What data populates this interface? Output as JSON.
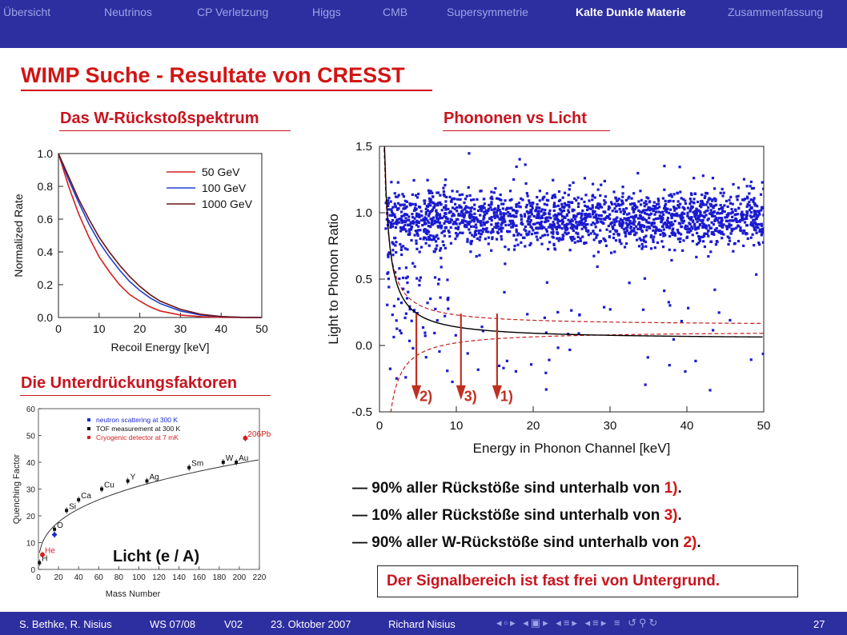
{
  "nav": {
    "items": [
      "Übersicht",
      "Neutrinos",
      "CP Verletzung",
      "Higgs",
      "CMB",
      "Supersymmetrie",
      "Kalte Dunkle Materie",
      "Zusammenfassung"
    ],
    "active_index": 6
  },
  "slide": {
    "title": "WIMP Suche - Resultate von CRESST",
    "sub_spectrum": "Das W-Rückstoßspektrum",
    "sub_scatter": "Phononen vs Licht",
    "sub_quench": "Die Unterdrückungsfaktoren",
    "bullets": [
      {
        "text": "— 90% aller Rückstöße sind unterhalb von ",
        "ref": "1)",
        "end": "."
      },
      {
        "text": "— 10% aller Rückstöße sind unterhalb von ",
        "ref": "3)",
        "end": "."
      },
      {
        "text": "— 90% aller W-Rückstöße sind unterhalb von ",
        "ref": "2)",
        "end": "."
      }
    ],
    "conclusion": "Der Signalbereich ist fast frei von Untergrund."
  },
  "chart_data": [
    {
      "type": "line",
      "xlabel": "Recoil Energy [keV]",
      "ylabel": "Normalized Rate",
      "xlim": [
        0,
        50
      ],
      "ylim": [
        0,
        1.0
      ],
      "xticks": [
        "0",
        "10",
        "20",
        "30",
        "40",
        "50"
      ],
      "yticks": [
        "0.0",
        "0.2",
        "0.4",
        "0.6",
        "0.8",
        "1.0"
      ],
      "legend_position": "top-right",
      "series": [
        {
          "name": "50 GeV",
          "color": "#d42020",
          "x": [
            0,
            2.5,
            5,
            7.5,
            10,
            12.5,
            15,
            17.5,
            20,
            22.5,
            25,
            30,
            35,
            40,
            45,
            50
          ],
          "values": [
            1.0,
            0.8,
            0.63,
            0.49,
            0.37,
            0.28,
            0.2,
            0.14,
            0.1,
            0.065,
            0.04,
            0.015,
            0.005,
            0.001,
            0,
            0
          ]
        },
        {
          "name": "100 GeV",
          "color": "#2040d0",
          "x": [
            0,
            2.5,
            5,
            7.5,
            10,
            12.5,
            15,
            17.5,
            20,
            22.5,
            25,
            30,
            35,
            40,
            45,
            50
          ],
          "values": [
            1.0,
            0.84,
            0.7,
            0.57,
            0.46,
            0.37,
            0.29,
            0.22,
            0.165,
            0.12,
            0.085,
            0.04,
            0.015,
            0.005,
            0.001,
            0
          ]
        },
        {
          "name": "1000 GeV",
          "color": "#6a1418",
          "x": [
            0,
            2.5,
            5,
            7.5,
            10,
            12.5,
            15,
            17.5,
            20,
            22.5,
            25,
            30,
            35,
            40,
            45,
            50
          ],
          "values": [
            1.0,
            0.86,
            0.72,
            0.6,
            0.49,
            0.4,
            0.32,
            0.25,
            0.19,
            0.14,
            0.1,
            0.05,
            0.02,
            0.006,
            0.001,
            0
          ]
        }
      ]
    },
    {
      "type": "scatter",
      "xlabel": "Energy in Phonon Channel [keV]",
      "ylabel": "Light to Phonon Ratio",
      "xlim": [
        0,
        50
      ],
      "ylim": [
        -0.5,
        1.5
      ],
      "xticks": [
        "0",
        "10",
        "20",
        "30",
        "40",
        "50"
      ],
      "yticks": [
        "-0.5",
        "0.0",
        "0.5",
        "1.0",
        "1.5"
      ],
      "point_color": "#1a1ad0",
      "band_center": 0.95,
      "band_color": "#c02020",
      "fit_color": "#000000",
      "markers": [
        {
          "label": "2)",
          "x": 4.8
        },
        {
          "label": "3)",
          "x": 10.6
        },
        {
          "label": "1)",
          "x": 15.3
        }
      ]
    },
    {
      "type": "scatter",
      "xlabel": "Mass Number",
      "ylabel": "Quenching Factor",
      "xlim": [
        0,
        220
      ],
      "ylim": [
        0,
        60
      ],
      "xticks": [
        "0",
        "20",
        "40",
        "60",
        "80",
        "100",
        "120",
        "140",
        "160",
        "180",
        "200",
        "220"
      ],
      "yticks": [
        "0",
        "10",
        "20",
        "30",
        "40",
        "50",
        "60"
      ],
      "legend": [
        {
          "name": "neutron scattering at 300 K",
          "color": "#1a2ad0"
        },
        {
          "name": "TOF measurement at 300 K",
          "color": "#111111"
        },
        {
          "name": "Cryogenic detector at 7 mK",
          "color": "#d42020"
        }
      ],
      "annotation": "Licht (e / A)",
      "points": [
        {
          "label": "H",
          "x": 1,
          "y": 2.5,
          "color": "#111111"
        },
        {
          "label": "He",
          "x": 4,
          "y": 5.5,
          "color": "#d42020"
        },
        {
          "label": "",
          "x": 16,
          "y": 13,
          "color": "#1a2ad0"
        },
        {
          "label": "O",
          "x": 16,
          "y": 15,
          "color": "#111111"
        },
        {
          "label": "Si",
          "x": 28,
          "y": 22,
          "color": "#111111"
        },
        {
          "label": "Ca",
          "x": 40,
          "y": 26,
          "color": "#111111"
        },
        {
          "label": "Cu",
          "x": 63,
          "y": 30,
          "color": "#111111"
        },
        {
          "label": "Y",
          "x": 89,
          "y": 33,
          "color": "#111111"
        },
        {
          "label": "Ag",
          "x": 108,
          "y": 33,
          "color": "#111111"
        },
        {
          "label": "Sm",
          "x": 150,
          "y": 38,
          "color": "#111111"
        },
        {
          "label": "W",
          "x": 184,
          "y": 40,
          "color": "#111111"
        },
        {
          "label": "Au",
          "x": 197,
          "y": 40,
          "color": "#111111"
        },
        {
          "label": "206Pb",
          "x": 206,
          "y": 49,
          "color": "#d42020"
        }
      ]
    }
  ],
  "footer": {
    "authors": "S. Bethke, R. Nisius",
    "semester": "WS 07/08",
    "lecture": "V02",
    "date": "23. Oktober 2007",
    "speaker": "Richard Nisius",
    "page": "27"
  }
}
